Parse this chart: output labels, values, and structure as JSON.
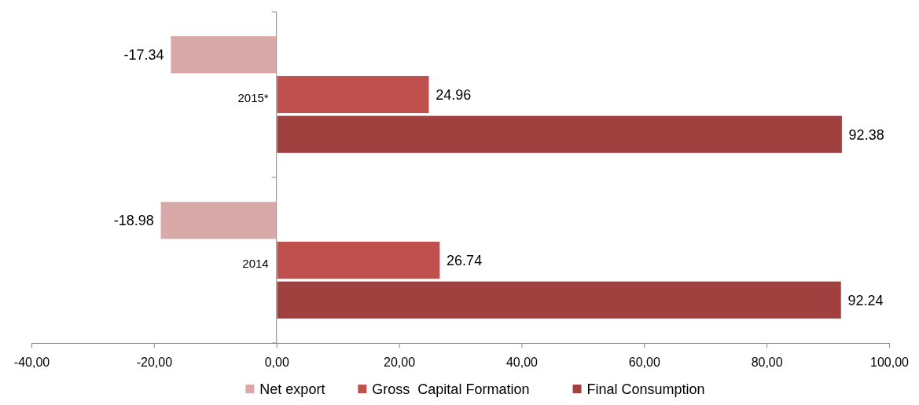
{
  "chart_data": {
    "type": "bar",
    "orientation": "horizontal",
    "categories": [
      "2015*",
      "2014"
    ],
    "series": [
      {
        "name": "Net export",
        "color": "#d9a8a8",
        "values": [
          -17.34,
          -18.98
        ]
      },
      {
        "name": "Gross  Capital Formation",
        "color": "#c0504d",
        "values": [
          24.96,
          26.74
        ]
      },
      {
        "name": "Final Consumption",
        "color": "#a0403f",
        "values": [
          92.38,
          92.24
        ]
      }
    ],
    "xlim": [
      -40,
      100
    ],
    "xticks": [
      {
        "value": -40,
        "label": "-40,00"
      },
      {
        "value": -20,
        "label": "-20,00"
      },
      {
        "value": 0,
        "label": "0,00"
      },
      {
        "value": 20,
        "label": "20,00"
      },
      {
        "value": 40,
        "label": "40,00"
      },
      {
        "value": 60,
        "label": "60,00"
      },
      {
        "value": 80,
        "label": "80,00"
      },
      {
        "value": 100,
        "label": "100,00"
      }
    ],
    "data_labels": true,
    "legend": "bottom"
  }
}
